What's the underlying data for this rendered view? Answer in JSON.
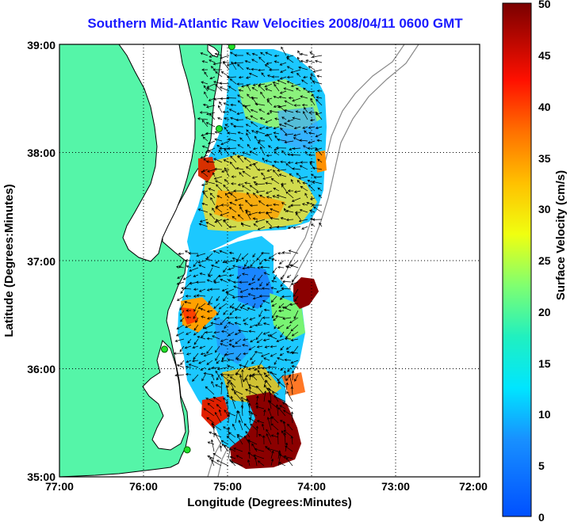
{
  "title": "Southern Mid-Atlantic Raw Velocities 2008/04/11 0600 GMT",
  "chart_data": {
    "type": "heatmap",
    "xlabel": "Longitude (Degrees:Minutes)",
    "ylabel": "Latitude (Degrees:Minutes)",
    "x_ticks": [
      "77:00",
      "76:00",
      "75:00",
      "74:00",
      "73:00",
      "72:00"
    ],
    "y_ticks": [
      "39:00",
      "38:00",
      "37:00",
      "36:00",
      "35:00"
    ],
    "xlim": [
      -77,
      -72
    ],
    "ylim": [
      35,
      39
    ],
    "grid": true,
    "colorbar": {
      "label": "Surface Velocity (cm/s)",
      "ticks": [
        "50",
        "45",
        "40",
        "35",
        "30",
        "25",
        "20",
        "15",
        "10",
        "5",
        "0"
      ],
      "range": [
        0,
        50
      ]
    },
    "colors": {
      "land": "#55f5a8",
      "coast": "#000000",
      "grid": "#000000"
    },
    "stations": [
      {
        "lon": -74.95,
        "lat": 38.98
      },
      {
        "lon": -75.1,
        "lat": 38.22
      },
      {
        "lon": -75.75,
        "lat": 36.18
      },
      {
        "lon": -75.48,
        "lat": 35.25
      }
    ]
  }
}
